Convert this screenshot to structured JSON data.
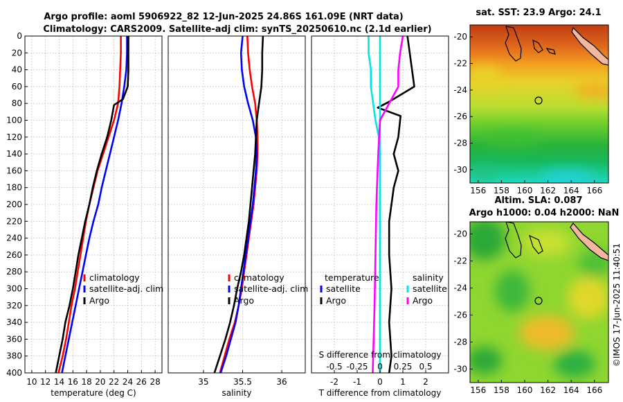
{
  "title": {
    "line1": "Argo profile: aoml 5906922_82 12-Jun-2025 24.86S 161.09E (NRT data)",
    "line2": "Climatology: CARS2009. Satellite-adj clim: synTS_20250610.nc (2.1d earlier)"
  },
  "copyright": "©IMOS 17-Jun-2025 11:40:51",
  "colors": {
    "climatology": "#ff0000",
    "satellite": "#0000ff",
    "argo": "#000000",
    "sat_temp": "#00e5e5",
    "sat_sal": "#ff00ff"
  },
  "chart_data": [
    {
      "type": "line",
      "title": "",
      "xlabel": "temperature (deg C)",
      "ylabel": "",
      "xlim": [
        9,
        29
      ],
      "ylim": [
        400,
        0
      ],
      "xticks": [
        "10",
        "12",
        "14",
        "16",
        "18",
        "20",
        "22",
        "24",
        "26",
        "28"
      ],
      "yticks": [
        "0",
        "20",
        "40",
        "60",
        "80",
        "100",
        "120",
        "140",
        "160",
        "180",
        "200",
        "220",
        "240",
        "260",
        "280",
        "300",
        "320",
        "340",
        "360",
        "380",
        "400"
      ],
      "legend": [
        "climatology",
        "satellite-adj. clim",
        "Argo"
      ],
      "series": [
        {
          "name": "climatology",
          "color": "#ff0000",
          "points": [
            [
              23.0,
              0
            ],
            [
              23.0,
              20
            ],
            [
              22.9,
              40
            ],
            [
              22.8,
              60
            ],
            [
              22.6,
              80
            ],
            [
              22.0,
              100
            ],
            [
              21.2,
              120
            ],
            [
              20.4,
              140
            ],
            [
              19.6,
              160
            ],
            [
              19.0,
              180
            ],
            [
              18.4,
              200
            ],
            [
              17.9,
              220
            ],
            [
              17.5,
              240
            ],
            [
              17.1,
              260
            ],
            [
              16.7,
              280
            ],
            [
              16.3,
              300
            ],
            [
              15.8,
              320
            ],
            [
              15.4,
              340
            ],
            [
              15.0,
              360
            ],
            [
              14.5,
              380
            ],
            [
              13.9,
              400
            ]
          ]
        },
        {
          "name": "satellite-adj. clim",
          "color": "#0000ff",
          "points": [
            [
              23.9,
              0
            ],
            [
              23.9,
              20
            ],
            [
              23.8,
              40
            ],
            [
              23.5,
              60
            ],
            [
              23.1,
              80
            ],
            [
              22.6,
              100
            ],
            [
              22.0,
              120
            ],
            [
              21.4,
              140
            ],
            [
              20.8,
              160
            ],
            [
              20.2,
              180
            ],
            [
              19.7,
              200
            ],
            [
              19.0,
              220
            ],
            [
              18.4,
              240
            ],
            [
              17.9,
              260
            ],
            [
              17.4,
              280
            ],
            [
              16.9,
              300
            ],
            [
              16.4,
              320
            ],
            [
              15.9,
              340
            ],
            [
              15.4,
              360
            ],
            [
              14.9,
              380
            ],
            [
              14.4,
              400
            ]
          ]
        },
        {
          "name": "Argo",
          "color": "#000000",
          "points": [
            [
              24.1,
              0
            ],
            [
              24.1,
              20
            ],
            [
              24.1,
              40
            ],
            [
              24.0,
              60
            ],
            [
              23.3,
              75
            ],
            [
              22.0,
              82
            ],
            [
              21.6,
              100
            ],
            [
              21.0,
              120
            ],
            [
              20.2,
              140
            ],
            [
              19.5,
              160
            ],
            [
              18.9,
              180
            ],
            [
              18.4,
              200
            ],
            [
              17.8,
              220
            ],
            [
              17.3,
              240
            ],
            [
              16.8,
              260
            ],
            [
              16.4,
              280
            ],
            [
              16.0,
              300
            ],
            [
              15.5,
              320
            ],
            [
              14.9,
              340
            ],
            [
              14.5,
              360
            ],
            [
              14.0,
              380
            ],
            [
              13.5,
              400
            ]
          ]
        }
      ]
    },
    {
      "type": "line",
      "title": "",
      "xlabel": "salinity",
      "ylabel": "",
      "xlim": [
        34.55,
        36.3
      ],
      "ylim": [
        400,
        0
      ],
      "xticks": [
        "35",
        "35.5",
        "36"
      ],
      "legend": [
        "climatology",
        "satellite-adj. clim",
        "Argo"
      ],
      "series": [
        {
          "name": "climatology",
          "color": "#ff0000",
          "points": [
            [
              35.56,
              0
            ],
            [
              35.57,
              20
            ],
            [
              35.59,
              40
            ],
            [
              35.62,
              60
            ],
            [
              35.66,
              80
            ],
            [
              35.68,
              100
            ],
            [
              35.69,
              120
            ],
            [
              35.69,
              140
            ],
            [
              35.68,
              160
            ],
            [
              35.66,
              180
            ],
            [
              35.64,
              200
            ],
            [
              35.61,
              220
            ],
            [
              35.58,
              240
            ],
            [
              35.55,
              260
            ],
            [
              35.52,
              280
            ],
            [
              35.49,
              300
            ],
            [
              35.45,
              320
            ],
            [
              35.4,
              340
            ],
            [
              35.33,
              360
            ],
            [
              35.27,
              380
            ],
            [
              35.21,
              400
            ]
          ]
        },
        {
          "name": "satellite-adj. clim",
          "color": "#0000ff",
          "points": [
            [
              35.5,
              0
            ],
            [
              35.48,
              20
            ],
            [
              35.49,
              40
            ],
            [
              35.52,
              60
            ],
            [
              35.57,
              80
            ],
            [
              35.63,
              100
            ],
            [
              35.67,
              120
            ],
            [
              35.68,
              140
            ],
            [
              35.67,
              160
            ],
            [
              35.65,
              180
            ],
            [
              35.63,
              200
            ],
            [
              35.6,
              220
            ],
            [
              35.57,
              240
            ],
            [
              35.54,
              260
            ],
            [
              35.51,
              280
            ],
            [
              35.48,
              300
            ],
            [
              35.45,
              320
            ],
            [
              35.41,
              340
            ],
            [
              35.35,
              360
            ],
            [
              35.29,
              380
            ],
            [
              35.22,
              400
            ]
          ]
        },
        {
          "name": "Argo",
          "color": "#000000",
          "points": [
            [
              35.76,
              0
            ],
            [
              35.75,
              20
            ],
            [
              35.75,
              40
            ],
            [
              35.74,
              60
            ],
            [
              35.71,
              80
            ],
            [
              35.68,
              100
            ],
            [
              35.67,
              120
            ],
            [
              35.66,
              140
            ],
            [
              35.64,
              160
            ],
            [
              35.62,
              180
            ],
            [
              35.6,
              200
            ],
            [
              35.58,
              220
            ],
            [
              35.55,
              240
            ],
            [
              35.52,
              260
            ],
            [
              35.48,
              280
            ],
            [
              35.43,
              300
            ],
            [
              35.39,
              320
            ],
            [
              35.34,
              340
            ],
            [
              35.28,
              360
            ],
            [
              35.21,
              380
            ],
            [
              35.14,
              400
            ]
          ]
        }
      ]
    },
    {
      "type": "line",
      "title": "",
      "xlabel": "T difference from climatology",
      "top_xlabel": "S difference from climatology",
      "ylabel": "",
      "xlim": [
        -3,
        3
      ],
      "ylim": [
        400,
        0
      ],
      "xticks": [
        "-2",
        "-1",
        "0",
        "1",
        "2"
      ],
      "top_xticks": [
        "-0.5",
        "-0.25",
        "0",
        "0.25",
        "0.5"
      ],
      "legend_left_title": "temperature",
      "legend_right_title": "salinity",
      "legend_left": [
        "satellite",
        "Argo"
      ],
      "legend_right": [
        "satellite",
        "Argo"
      ],
      "series": [
        {
          "name": "temperature satellite",
          "color": "#00e5e5",
          "points": [
            [
              -0.5,
              0
            ],
            [
              -0.5,
              20
            ],
            [
              -0.4,
              40
            ],
            [
              -0.4,
              60
            ],
            [
              -0.3,
              80
            ],
            [
              -0.2,
              100
            ],
            [
              -0.05,
              120
            ],
            [
              0,
              140
            ],
            [
              0,
              200
            ],
            [
              0,
              300
            ],
            [
              0,
              400
            ]
          ]
        },
        {
          "name": "temperature Argo",
          "color": "#000000",
          "points": [
            [
              1.2,
              0
            ],
            [
              1.3,
              20
            ],
            [
              1.4,
              40
            ],
            [
              1.5,
              60
            ],
            [
              0.4,
              78
            ],
            [
              -0.1,
              85
            ],
            [
              0.9,
              95
            ],
            [
              0.8,
              120
            ],
            [
              0.6,
              140
            ],
            [
              0.8,
              160
            ],
            [
              0.6,
              180
            ],
            [
              0.5,
              200
            ],
            [
              0.4,
              220
            ],
            [
              0.4,
              260
            ],
            [
              0.5,
              300
            ],
            [
              0.4,
              340
            ],
            [
              0.5,
              380
            ],
            [
              0.4,
              400
            ]
          ]
        },
        {
          "name": "salinity satellite",
          "color": "#00e5e5",
          "points": [
            [
              0,
              0
            ],
            [
              0,
              100
            ],
            [
              0,
              200
            ],
            [
              0,
              300
            ],
            [
              0,
              400
            ]
          ]
        },
        {
          "name": "salinity Argo",
          "color": "#ff00ff",
          "points": [
            [
              0.25,
              0
            ],
            [
              0.22,
              20
            ],
            [
              0.2,
              40
            ],
            [
              0.2,
              60
            ],
            [
              0.1,
              80
            ],
            [
              0.0,
              100
            ],
            [
              -0.02,
              140
            ],
            [
              -0.04,
              200
            ],
            [
              -0.05,
              260
            ],
            [
              -0.06,
              320
            ],
            [
              -0.07,
              360
            ],
            [
              -0.08,
              400
            ]
          ]
        }
      ]
    }
  ],
  "maps": [
    {
      "title": "sat. SST: 23.9 Argo: 24.1",
      "xticks": [
        "156",
        "158",
        "160",
        "162",
        "164",
        "166"
      ],
      "yticks": [
        "-20",
        "-22",
        "-24",
        "-26",
        "-28",
        "-30"
      ]
    },
    {
      "title_line1": "Altim. SLA: 0.087",
      "title_line2": "Argo h1000: 0.04 h2000: NaN",
      "xticks": [
        "156",
        "158",
        "160",
        "162",
        "164",
        "166"
      ],
      "yticks": [
        "-20",
        "-22",
        "-24",
        "-26",
        "-28",
        "-30"
      ]
    }
  ]
}
